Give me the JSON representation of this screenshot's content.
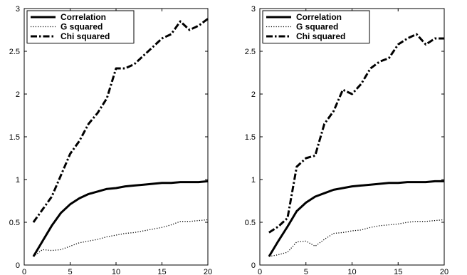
{
  "chart_data": [
    {
      "type": "line",
      "xlim": [
        0,
        20
      ],
      "ylim": [
        0,
        3
      ],
      "xticks": [
        "0",
        "5",
        "10",
        "15",
        "20"
      ],
      "yticks": [
        "0",
        "0.5",
        "1",
        "1.5",
        "2",
        "2.5",
        "3"
      ],
      "grid": false,
      "legend_position": "top-left",
      "series": [
        {
          "name": "Correlation",
          "style": "solid",
          "x": [
            1,
            2,
            3,
            4,
            5,
            6,
            7,
            8,
            9,
            10,
            11,
            12,
            13,
            14,
            15,
            16,
            17,
            18,
            19,
            20
          ],
          "y": [
            0.1,
            0.28,
            0.46,
            0.61,
            0.71,
            0.78,
            0.83,
            0.86,
            0.89,
            0.9,
            0.92,
            0.93,
            0.94,
            0.95,
            0.96,
            0.96,
            0.97,
            0.97,
            0.97,
            0.98
          ]
        },
        {
          "name": "G squared",
          "style": "dotted",
          "x": [
            1,
            2,
            3,
            4,
            5,
            6,
            7,
            8,
            9,
            10,
            11,
            12,
            13,
            14,
            15,
            16,
            17,
            18,
            19,
            20
          ],
          "y": [
            0.1,
            0.18,
            0.17,
            0.18,
            0.22,
            0.26,
            0.28,
            0.3,
            0.33,
            0.35,
            0.37,
            0.38,
            0.4,
            0.42,
            0.44,
            0.47,
            0.51,
            0.51,
            0.52,
            0.53
          ]
        },
        {
          "name": "Chi squared",
          "style": "dashdot",
          "x": [
            1,
            2,
            3,
            4,
            5,
            6,
            7,
            8,
            9,
            10,
            11,
            12,
            13,
            14,
            15,
            16,
            17,
            18,
            19,
            20
          ],
          "y": [
            0.5,
            0.65,
            0.8,
            1.05,
            1.3,
            1.45,
            1.65,
            1.78,
            1.95,
            2.3,
            2.3,
            2.35,
            2.45,
            2.55,
            2.65,
            2.7,
            2.85,
            2.75,
            2.8,
            2.88
          ]
        }
      ]
    },
    {
      "type": "line",
      "xlim": [
        0,
        20
      ],
      "ylim": [
        0,
        3
      ],
      "xticks": [
        "0",
        "5",
        "10",
        "15",
        "20"
      ],
      "yticks": [
        "0",
        "0.5",
        "1",
        "1.5",
        "2",
        "2.5",
        "3"
      ],
      "grid": false,
      "legend_position": "top-left",
      "series": [
        {
          "name": "Correlation",
          "style": "solid",
          "x": [
            1,
            2,
            3,
            4,
            5,
            6,
            7,
            8,
            9,
            10,
            11,
            12,
            13,
            14,
            15,
            16,
            17,
            18,
            19,
            20
          ],
          "y": [
            0.1,
            0.28,
            0.45,
            0.63,
            0.73,
            0.8,
            0.84,
            0.88,
            0.9,
            0.92,
            0.93,
            0.94,
            0.95,
            0.96,
            0.96,
            0.97,
            0.97,
            0.97,
            0.98,
            0.98
          ]
        },
        {
          "name": "G squared",
          "style": "dotted",
          "x": [
            1,
            2,
            3,
            4,
            5,
            6,
            7,
            8,
            9,
            10,
            11,
            12,
            13,
            14,
            15,
            16,
            17,
            18,
            19,
            20
          ],
          "y": [
            0.1,
            0.12,
            0.15,
            0.27,
            0.28,
            0.22,
            0.3,
            0.37,
            0.38,
            0.4,
            0.41,
            0.44,
            0.46,
            0.47,
            0.48,
            0.5,
            0.51,
            0.51,
            0.52,
            0.53
          ]
        },
        {
          "name": "Chi squared",
          "style": "dashdot",
          "x": [
            1,
            2,
            3,
            4,
            5,
            6,
            7,
            8,
            9,
            10,
            11,
            12,
            13,
            14,
            15,
            16,
            17,
            18,
            19,
            20
          ],
          "y": [
            0.38,
            0.45,
            0.55,
            1.15,
            1.25,
            1.28,
            1.65,
            1.8,
            2.05,
            2.0,
            2.12,
            2.3,
            2.38,
            2.42,
            2.58,
            2.65,
            2.7,
            2.58,
            2.65,
            2.65
          ]
        }
      ]
    }
  ]
}
